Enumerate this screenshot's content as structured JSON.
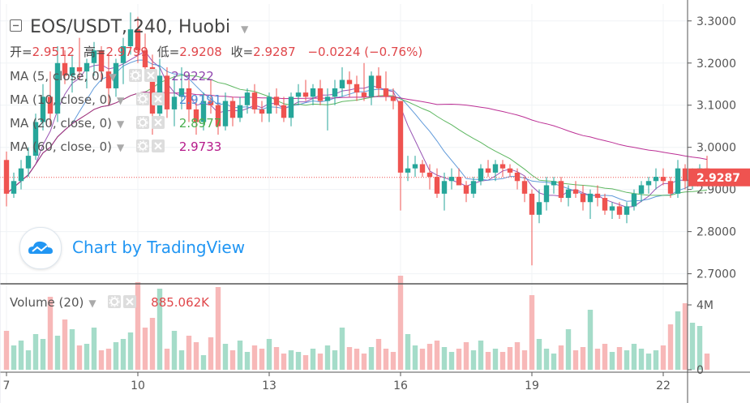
{
  "header": {
    "symbol": "EOS/USDT",
    "interval": "240",
    "exchange": "Huobi",
    "ohlc_labels": {
      "open": "开=",
      "high": "高=",
      "low": "低=",
      "close": "收="
    },
    "ohlc_values": {
      "open": "2.9512",
      "high": "2.9799",
      "low": "2.9208",
      "close": "2.9287"
    },
    "change": "−0.0224 (−0.76%)"
  },
  "indicators": [
    {
      "label": "MA (5, close, 0)",
      "value": "2.9222",
      "color": "#8e44ad"
    },
    {
      "label": "MA (10, close, 0)",
      "value": "2.9191",
      "color": "#4f8fd6"
    },
    {
      "label": "MA (20, close, 0)",
      "value": "2.8977",
      "color": "#4caf50"
    },
    {
      "label": "MA (60, close, 0)",
      "value": "2.9733",
      "color": "#b5198a"
    }
  ],
  "watermark": {
    "text": "Chart by TradingView"
  },
  "volume_legend": {
    "label": "Volume (20)",
    "value": "885.062K"
  },
  "price_tag": "2.9287",
  "colors": {
    "up": "#26a69a",
    "down": "#ef5350",
    "ma5": "#8e44ad",
    "ma10": "#4f8fd6",
    "ma20": "#4caf50",
    "ma60": "#b5198a",
    "tag": "#ef5350"
  },
  "chart_data": {
    "type": "candlestick",
    "x_axis": {
      "tick_labels": [
        "7",
        "10",
        "13",
        "16",
        "19",
        "22"
      ],
      "tick_index": [
        0,
        18,
        36,
        54,
        72,
        90
      ]
    },
    "y_axis": {
      "tick_labels": [
        "3.3000",
        "3.2000",
        "3.1000",
        "3.0000",
        "2.9000",
        "2.8000",
        "2.7000"
      ],
      "ylim": [
        2.68,
        3.34
      ]
    },
    "volume_axis": {
      "tick_labels": [
        "4M",
        "0"
      ],
      "ylim": [
        0,
        5200000
      ]
    },
    "last_price": 2.9287,
    "candles": [
      [
        2.97,
        2.99,
        2.86,
        2.89,
        2400000
      ],
      [
        2.89,
        2.94,
        2.88,
        2.92,
        1500000
      ],
      [
        2.92,
        2.97,
        2.9,
        2.95,
        1800000
      ],
      [
        2.95,
        3.0,
        2.93,
        2.98,
        1200000
      ],
      [
        2.98,
        3.08,
        2.97,
        3.06,
        2200000
      ],
      [
        3.06,
        3.15,
        3.04,
        3.12,
        1900000
      ],
      [
        3.12,
        3.18,
        3.05,
        3.08,
        4500000
      ],
      [
        3.08,
        3.24,
        3.06,
        3.2,
        2100000
      ],
      [
        3.2,
        3.23,
        3.15,
        3.17,
        3100000
      ],
      [
        3.17,
        3.22,
        3.13,
        3.19,
        2500000
      ],
      [
        3.19,
        3.26,
        3.16,
        3.18,
        1500000
      ],
      [
        3.18,
        3.21,
        3.14,
        3.2,
        1600000
      ],
      [
        3.2,
        3.25,
        3.17,
        3.23,
        2600000
      ],
      [
        3.23,
        3.24,
        3.16,
        3.18,
        1200000
      ],
      [
        3.18,
        3.22,
        3.1,
        3.14,
        1300000
      ],
      [
        3.14,
        3.21,
        3.12,
        3.2,
        1700000
      ],
      [
        3.2,
        3.26,
        3.15,
        3.24,
        1900000
      ],
      [
        3.24,
        3.32,
        3.22,
        3.28,
        2300000
      ],
      [
        3.28,
        3.31,
        3.2,
        3.23,
        5400000
      ],
      [
        3.23,
        3.27,
        3.16,
        3.19,
        2600000
      ],
      [
        3.19,
        3.22,
        3.03,
        3.08,
        3200000
      ],
      [
        3.08,
        3.21,
        3.06,
        3.17,
        5000000
      ],
      [
        3.17,
        3.19,
        3.07,
        3.09,
        1300000
      ],
      [
        3.09,
        3.17,
        3.05,
        3.12,
        2400000
      ],
      [
        3.12,
        3.19,
        3.09,
        3.14,
        1200000
      ],
      [
        3.14,
        3.16,
        3.06,
        3.09,
        2100000
      ],
      [
        3.09,
        3.12,
        3.03,
        3.06,
        1700000
      ],
      [
        3.06,
        3.13,
        3.04,
        3.11,
        900000
      ],
      [
        3.11,
        3.16,
        3.08,
        3.1,
        2000000
      ],
      [
        3.1,
        3.11,
        3.03,
        3.05,
        5100000
      ],
      [
        3.05,
        3.13,
        3.04,
        3.11,
        1600000
      ],
      [
        3.11,
        3.12,
        3.05,
        3.07,
        1200000
      ],
      [
        3.07,
        3.12,
        3.06,
        3.1,
        1800000
      ],
      [
        3.1,
        3.14,
        3.08,
        3.13,
        1100000
      ],
      [
        3.13,
        3.15,
        3.08,
        3.09,
        1500000
      ],
      [
        3.09,
        3.11,
        3.06,
        3.08,
        1300000
      ],
      [
        3.08,
        3.13,
        3.06,
        3.12,
        1900000
      ],
      [
        3.12,
        3.14,
        3.08,
        3.1,
        1400000
      ],
      [
        3.1,
        3.12,
        3.06,
        3.07,
        1000000
      ],
      [
        3.07,
        3.13,
        3.05,
        3.12,
        1200000
      ],
      [
        3.12,
        3.15,
        3.1,
        3.13,
        1100000
      ],
      [
        3.13,
        3.16,
        3.11,
        3.12,
        900000
      ],
      [
        3.12,
        3.15,
        3.1,
        3.14,
        1300000
      ],
      [
        3.14,
        3.16,
        3.1,
        3.11,
        1000000
      ],
      [
        3.11,
        3.14,
        3.04,
        3.12,
        1500000
      ],
      [
        3.12,
        3.16,
        3.1,
        3.14,
        1200000
      ],
      [
        3.14,
        3.19,
        3.12,
        3.16,
        2600000
      ],
      [
        3.16,
        3.18,
        3.12,
        3.15,
        1400000
      ],
      [
        3.15,
        3.17,
        3.11,
        3.13,
        1300000
      ],
      [
        3.13,
        3.2,
        3.11,
        3.12,
        1000000
      ],
      [
        3.12,
        3.18,
        3.1,
        3.17,
        1400000
      ],
      [
        3.17,
        3.19,
        3.12,
        3.14,
        1900000
      ],
      [
        3.14,
        3.18,
        3.11,
        3.12,
        1300000
      ],
      [
        3.12,
        3.14,
        3.09,
        3.11,
        1100000
      ],
      [
        3.11,
        3.11,
        2.85,
        2.94,
        5800000
      ],
      [
        2.94,
        2.98,
        2.92,
        2.95,
        2200000
      ],
      [
        2.95,
        2.98,
        2.93,
        2.96,
        1500000
      ],
      [
        2.96,
        2.97,
        2.93,
        2.94,
        1300000
      ],
      [
        2.94,
        2.96,
        2.9,
        2.93,
        1600000
      ],
      [
        2.93,
        2.95,
        2.88,
        2.89,
        1800000
      ],
      [
        2.89,
        2.94,
        2.85,
        2.92,
        1400000
      ],
      [
        2.92,
        2.95,
        2.9,
        2.93,
        1100000
      ],
      [
        2.93,
        2.95,
        2.91,
        2.91,
        1300000
      ],
      [
        2.91,
        2.92,
        2.87,
        2.89,
        1700000
      ],
      [
        2.89,
        2.93,
        2.88,
        2.92,
        1200000
      ],
      [
        2.92,
        2.96,
        2.91,
        2.95,
        1800000
      ],
      [
        2.95,
        2.97,
        2.93,
        2.94,
        1100000
      ],
      [
        2.94,
        2.97,
        2.92,
        2.96,
        1300000
      ],
      [
        2.96,
        2.97,
        2.93,
        2.95,
        1100000
      ],
      [
        2.95,
        2.96,
        2.93,
        2.94,
        1400000
      ],
      [
        2.94,
        2.95,
        2.9,
        2.92,
        1700000
      ],
      [
        2.92,
        2.93,
        2.87,
        2.89,
        1200000
      ],
      [
        2.89,
        2.9,
        2.72,
        2.84,
        4600000
      ],
      [
        2.84,
        2.9,
        2.82,
        2.87,
        1900000
      ],
      [
        2.87,
        2.93,
        2.85,
        2.91,
        1300000
      ],
      [
        2.91,
        2.93,
        2.89,
        2.92,
        1000000
      ],
      [
        2.92,
        2.93,
        2.87,
        2.88,
        1500000
      ],
      [
        2.88,
        2.91,
        2.86,
        2.9,
        2500000
      ],
      [
        2.9,
        2.92,
        2.88,
        2.89,
        1200000
      ],
      [
        2.89,
        2.91,
        2.85,
        2.87,
        1400000
      ],
      [
        2.87,
        2.9,
        2.83,
        2.89,
        3700000
      ],
      [
        2.89,
        2.91,
        2.86,
        2.88,
        1300000
      ],
      [
        2.88,
        2.89,
        2.84,
        2.85,
        1600000
      ],
      [
        2.85,
        2.87,
        2.83,
        2.86,
        1100000
      ],
      [
        2.86,
        2.87,
        2.83,
        2.84,
        1400000
      ],
      [
        2.84,
        2.87,
        2.82,
        2.86,
        1200000
      ],
      [
        2.86,
        2.9,
        2.85,
        2.89,
        1600000
      ],
      [
        2.89,
        2.92,
        2.87,
        2.91,
        1300000
      ],
      [
        2.91,
        2.93,
        2.89,
        2.92,
        1000000
      ],
      [
        2.92,
        2.95,
        2.9,
        2.93,
        1200000
      ],
      [
        2.93,
        2.95,
        2.91,
        2.92,
        1500000
      ],
      [
        2.92,
        2.93,
        2.88,
        2.89,
        2800000
      ],
      [
        2.89,
        2.97,
        2.88,
        2.95,
        3600000
      ],
      [
        2.95,
        2.96,
        2.9,
        2.92,
        4100000
      ],
      [
        2.92,
        2.95,
        2.9,
        2.93,
        2900000
      ],
      [
        2.93,
        2.96,
        2.91,
        2.95,
        2700000
      ],
      [
        2.95,
        2.98,
        2.91,
        2.93,
        1000000
      ]
    ]
  }
}
